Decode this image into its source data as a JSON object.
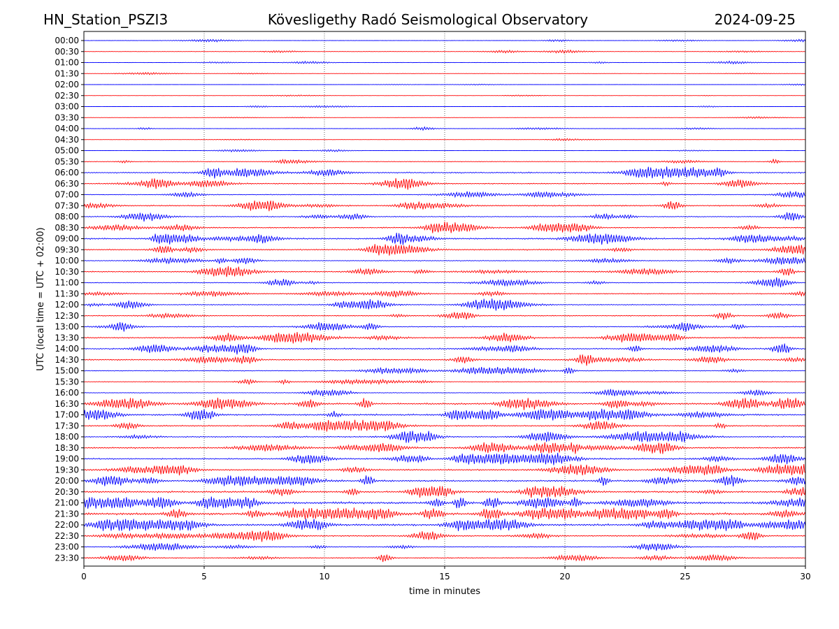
{
  "header": {
    "station": "HN_Station_PSZI3",
    "observatory": "Kövesligethy Radó Seismological Observatory",
    "date": "2024-09-25"
  },
  "chart_data": {
    "type": "line",
    "title": "Kövesligethy Radó Seismological Observatory",
    "xlabel": "time in minutes",
    "ylabel": "UTC (local time = UTC + 02:00)",
    "xlim": [
      0,
      30
    ],
    "x_ticks": [
      "0",
      "5",
      "10",
      "15",
      "20",
      "25",
      "30"
    ],
    "x_tick_values": [
      0,
      5,
      10,
      15,
      20,
      25,
      30
    ],
    "grid": "vertical dotted at 5-minute intervals",
    "trace_colors": [
      "#0000ff",
      "#ff0000"
    ],
    "traces": [
      {
        "label": "00:00",
        "color": "#0000ff",
        "activity": 0.12
      },
      {
        "label": "00:30",
        "color": "#ff0000",
        "activity": 0.12
      },
      {
        "label": "01:00",
        "color": "#0000ff",
        "activity": 0.15
      },
      {
        "label": "01:30",
        "color": "#ff0000",
        "activity": 0.08
      },
      {
        "label": "02:00",
        "color": "#0000ff",
        "activity": 0.08
      },
      {
        "label": "02:30",
        "color": "#ff0000",
        "activity": 0.06
      },
      {
        "label": "03:00",
        "color": "#0000ff",
        "activity": 0.08
      },
      {
        "label": "03:30",
        "color": "#ff0000",
        "activity": 0.08
      },
      {
        "label": "04:00",
        "color": "#0000ff",
        "activity": 0.15
      },
      {
        "label": "04:30",
        "color": "#ff0000",
        "activity": 0.08
      },
      {
        "label": "05:00",
        "color": "#0000ff",
        "activity": 0.1
      },
      {
        "label": "05:30",
        "color": "#ff0000",
        "activity": 0.2
      },
      {
        "label": "06:00",
        "color": "#0000ff",
        "activity": 0.45
      },
      {
        "label": "06:30",
        "color": "#ff0000",
        "activity": 0.35
      },
      {
        "label": "07:00",
        "color": "#0000ff",
        "activity": 0.3
      },
      {
        "label": "07:30",
        "color": "#ff0000",
        "activity": 0.4
      },
      {
        "label": "08:00",
        "color": "#0000ff",
        "activity": 0.35
      },
      {
        "label": "08:30",
        "color": "#ff0000",
        "activity": 0.4
      },
      {
        "label": "09:00",
        "color": "#0000ff",
        "activity": 0.5
      },
      {
        "label": "09:30",
        "color": "#ff0000",
        "activity": 0.45
      },
      {
        "label": "10:00",
        "color": "#0000ff",
        "activity": 0.3
      },
      {
        "label": "10:30",
        "color": "#ff0000",
        "activity": 0.4
      },
      {
        "label": "11:00",
        "color": "#0000ff",
        "activity": 0.3
      },
      {
        "label": "11:30",
        "color": "#ff0000",
        "activity": 0.3
      },
      {
        "label": "12:00",
        "color": "#0000ff",
        "activity": 0.35
      },
      {
        "label": "12:30",
        "color": "#ff0000",
        "activity": 0.3
      },
      {
        "label": "13:00",
        "color": "#0000ff",
        "activity": 0.35
      },
      {
        "label": "13:30",
        "color": "#ff0000",
        "activity": 0.45
      },
      {
        "label": "14:00",
        "color": "#0000ff",
        "activity": 0.45
      },
      {
        "label": "14:30",
        "color": "#ff0000",
        "activity": 0.4
      },
      {
        "label": "15:00",
        "color": "#0000ff",
        "activity": 0.3
      },
      {
        "label": "15:30",
        "color": "#ff0000",
        "activity": 0.2
      },
      {
        "label": "16:00",
        "color": "#0000ff",
        "activity": 0.25
      },
      {
        "label": "16:30",
        "color": "#ff0000",
        "activity": 0.55
      },
      {
        "label": "17:00",
        "color": "#0000ff",
        "activity": 0.6
      },
      {
        "label": "17:30",
        "color": "#ff0000",
        "activity": 0.45
      },
      {
        "label": "18:00",
        "color": "#0000ff",
        "activity": 0.45
      },
      {
        "label": "18:30",
        "color": "#ff0000",
        "activity": 0.5
      },
      {
        "label": "19:00",
        "color": "#0000ff",
        "activity": 0.5
      },
      {
        "label": "19:30",
        "color": "#ff0000",
        "activity": 0.5
      },
      {
        "label": "20:00",
        "color": "#0000ff",
        "activity": 0.6
      },
      {
        "label": "20:30",
        "color": "#ff0000",
        "activity": 0.6
      },
      {
        "label": "21:00",
        "color": "#0000ff",
        "activity": 0.85
      },
      {
        "label": "21:30",
        "color": "#ff0000",
        "activity": 0.85
      },
      {
        "label": "22:00",
        "color": "#0000ff",
        "activity": 0.7
      },
      {
        "label": "22:30",
        "color": "#ff0000",
        "activity": 0.45
      },
      {
        "label": "23:00",
        "color": "#0000ff",
        "activity": 0.3
      },
      {
        "label": "23:30",
        "color": "#ff0000",
        "activity": 0.3
      }
    ]
  }
}
